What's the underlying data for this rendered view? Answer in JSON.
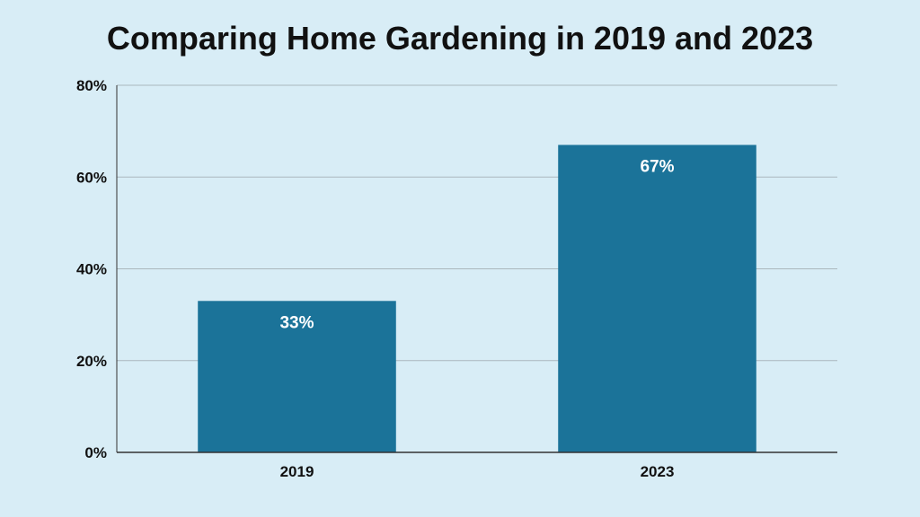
{
  "chart_data": {
    "type": "bar",
    "title": "Comparing Home Gardening in 2019 and 2023",
    "categories": [
      "2019",
      "2023"
    ],
    "values": [
      33,
      67
    ],
    "data_labels": [
      "33%",
      "67%"
    ],
    "xlabel": "",
    "ylabel": "",
    "ylim": [
      0,
      80
    ],
    "yticks": [
      0,
      20,
      40,
      60,
      80
    ],
    "ytick_labels": [
      "0%",
      "20%",
      "40%",
      "60%",
      "80%"
    ],
    "grid": true,
    "legend": "none",
    "colors": {
      "bar": "#1b7399",
      "gridline": "#aab7bd",
      "axis": "#333333",
      "background": "#d8edf6"
    }
  }
}
